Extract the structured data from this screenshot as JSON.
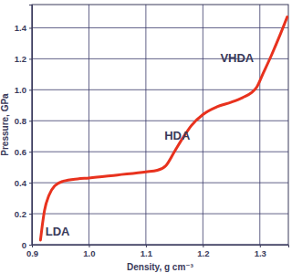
{
  "chart_data": {
    "type": "line",
    "x_label": "Density, g cm⁻³",
    "y_label": "Pressure, GPa",
    "x": [
      0.915,
      0.918,
      0.922,
      0.93,
      0.94,
      0.955,
      0.98,
      1.0,
      1.05,
      1.1,
      1.12,
      1.135,
      1.15,
      1.165,
      1.18,
      1.2,
      1.225,
      1.25,
      1.27,
      1.285,
      1.295,
      1.305,
      1.32,
      1.335,
      1.348
    ],
    "values": [
      0.03,
      0.12,
      0.22,
      0.32,
      0.38,
      0.41,
      0.425,
      0.43,
      0.45,
      0.47,
      0.48,
      0.51,
      0.6,
      0.69,
      0.77,
      0.84,
      0.89,
      0.92,
      0.95,
      0.98,
      1.02,
      1.1,
      1.22,
      1.35,
      1.47
    ],
    "color": "#e8321e",
    "xlim": [
      0.9,
      1.35
    ],
    "ylim": [
      0,
      1.55
    ],
    "xticks": [
      0.9,
      {
        "value": 1.0,
        "label": "1.0"
      },
      1.1,
      1.2,
      1.3
    ],
    "yticks": [
      0,
      0.2,
      0.4,
      0.6,
      0.8,
      {
        "value": 1.0,
        "label": "1.0"
      },
      1.2,
      1.4
    ],
    "grid": true,
    "annotations": [
      {
        "text": "LDA",
        "x": 0.945,
        "y": 0.08
      },
      {
        "text": "HDA",
        "x": 1.155,
        "y": 0.7
      },
      {
        "text": "VHDA",
        "x": 1.26,
        "y": 1.2
      }
    ]
  }
}
